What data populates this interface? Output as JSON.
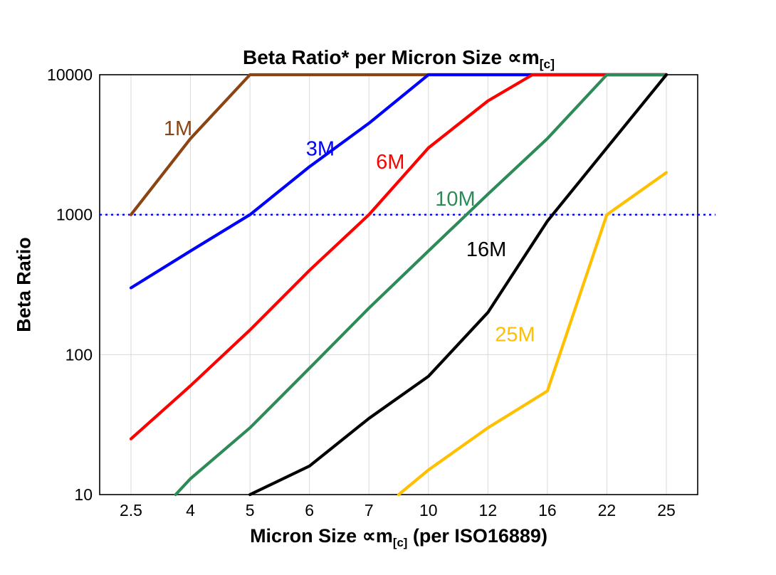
{
  "title": {
    "main": "Beta Ratio* per Micron Size ∝m",
    "sub": "[c]"
  },
  "y_axis": {
    "label": "Beta Ratio"
  },
  "x_axis": {
    "label_pre": "Micron Size ∝m",
    "label_sub": "[c]",
    "label_post": " (per ISO16889)"
  },
  "chart_data": {
    "type": "line",
    "title": "Beta Ratio* per Micron Size ∝m[c]",
    "xlabel": "Micron Size ∝m[c] (per ISO16889)",
    "ylabel": "Beta Ratio",
    "x_mode": "categorical",
    "categories": [
      "2.5",
      "4",
      "5",
      "6",
      "7",
      "10",
      "12",
      "16",
      "22",
      "25"
    ],
    "y_scale": "log",
    "ylim": [
      10,
      10000
    ],
    "y_ticks": [
      10,
      100,
      1000,
      10000
    ],
    "grid": true,
    "grid_color": "#d9d9d9",
    "reference_line": {
      "y": 1000,
      "color": "#0000FF",
      "style": "dotted"
    },
    "series": [
      {
        "name": "1M",
        "color": "#8B4513",
        "points": [
          [
            0,
            1000
          ],
          [
            1,
            3500
          ],
          [
            2,
            10000
          ],
          [
            9,
            10000
          ]
        ],
        "label_pos": {
          "fx": 0.107,
          "fy": 0.144
        }
      },
      {
        "name": "3M",
        "color": "#0000FF",
        "points": [
          [
            0,
            300
          ],
          [
            1,
            550
          ],
          [
            2,
            1000
          ],
          [
            3,
            2200
          ],
          [
            4,
            4500
          ],
          [
            5,
            10000
          ],
          [
            9,
            10000
          ]
        ],
        "label_pos": {
          "fx": 0.345,
          "fy": 0.192
        }
      },
      {
        "name": "6M",
        "color": "#FF0000",
        "points": [
          [
            0,
            25
          ],
          [
            1,
            60
          ],
          [
            2,
            150
          ],
          [
            3,
            400
          ],
          [
            4,
            1000
          ],
          [
            5,
            3000
          ],
          [
            6,
            6500
          ],
          [
            6.75,
            10000
          ],
          [
            9,
            10000
          ]
        ],
        "label_pos": {
          "fx": 0.462,
          "fy": 0.224
        }
      },
      {
        "name": "10M",
        "color": "#2E8B57",
        "points": [
          [
            0.75,
            10
          ],
          [
            1,
            13
          ],
          [
            2,
            30
          ],
          [
            3,
            80
          ],
          [
            4,
            215
          ],
          [
            5,
            550
          ],
          [
            6,
            1400
          ],
          [
            7,
            3500
          ],
          [
            8,
            10000
          ],
          [
            9,
            10000
          ]
        ],
        "label_pos": {
          "fx": 0.561,
          "fy": 0.312
        }
      },
      {
        "name": "16M",
        "color": "#000000",
        "points": [
          [
            2,
            10
          ],
          [
            3,
            16
          ],
          [
            4,
            35
          ],
          [
            5,
            70
          ],
          [
            6,
            200
          ],
          [
            7,
            900
          ],
          [
            8,
            3000
          ],
          [
            9,
            10000
          ]
        ],
        "label_pos": {
          "fx": 0.613,
          "fy": 0.432
        }
      },
      {
        "name": "25M",
        "color": "#FFC000",
        "points": [
          [
            4.5,
            10
          ],
          [
            5,
            15
          ],
          [
            6,
            30
          ],
          [
            7,
            55
          ],
          [
            8,
            1000
          ],
          [
            9,
            2000
          ]
        ],
        "label_pos": {
          "fx": 0.661,
          "fy": 0.635
        }
      }
    ]
  }
}
